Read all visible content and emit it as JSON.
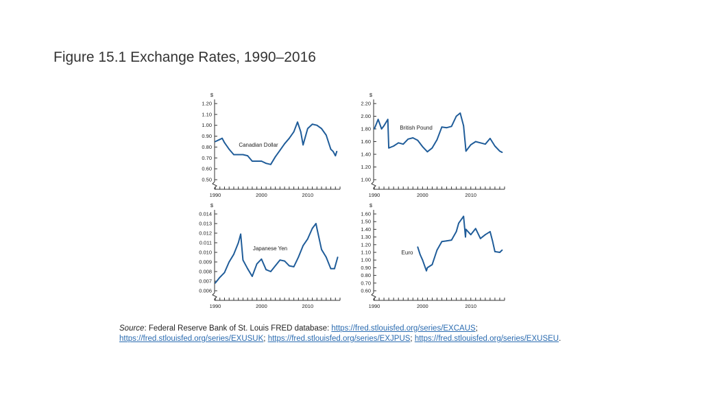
{
  "page": {
    "title": "Figure 15.1 Exchange Rates, 1990–2016"
  },
  "source": {
    "label": "Source",
    "text": ": Federal Reserve Bank of St. Louis FRED database: ",
    "sep": "; ",
    "end": ".",
    "links": [
      "https://fred.stlouisfed.org/series/EXCAUS",
      "https://fred.stlouisfed.org/series/EXUSUK",
      "https://fred.stlouisfed.org/series/EXJPUS",
      "https://fred.stlouisfed.org/series/EXUSEU"
    ]
  },
  "colors": {
    "line": "#1f5c99",
    "axis": "#333333"
  },
  "chart_data": [
    {
      "type": "line",
      "name": "Canadian Dollar",
      "ylabel": "$",
      "yticks": [
        "0.50",
        "0.60",
        "0.70",
        "0.80",
        "0.90",
        "1.00",
        "1.10",
        "1.20"
      ],
      "ylim": [
        0.5,
        1.2
      ],
      "xticks": [
        "1990",
        "2000",
        "2010"
      ],
      "xlim": [
        1990,
        2017
      ],
      "x": [
        1990,
        1991,
        1991.5,
        1992,
        1993,
        1994,
        1995,
        1996,
        1997,
        1998,
        1999,
        2000,
        2001,
        2002,
        2003,
        2004,
        2005,
        2006,
        2007,
        2007.8,
        2008.5,
        2009,
        2010,
        2011,
        2012,
        2013,
        2014,
        2015,
        2015.5,
        2016,
        2016.3
      ],
      "y": [
        0.85,
        0.87,
        0.88,
        0.84,
        0.78,
        0.73,
        0.73,
        0.73,
        0.72,
        0.67,
        0.67,
        0.67,
        0.65,
        0.64,
        0.71,
        0.77,
        0.83,
        0.88,
        0.94,
        1.03,
        0.94,
        0.82,
        0.97,
        1.01,
        1.0,
        0.97,
        0.91,
        0.78,
        0.76,
        0.72,
        0.76
      ],
      "label_position": "center-left"
    },
    {
      "type": "line",
      "name": "British Pound",
      "ylabel": "$",
      "yticks": [
        "1.00",
        "1.20",
        "1.40",
        "1.60",
        "1.80",
        "2.00",
        "2.20"
      ],
      "ylim": [
        1.0,
        2.2
      ],
      "xticks": [
        "1990",
        "2000",
        "2010"
      ],
      "xlim": [
        1990,
        2017
      ],
      "x": [
        1990,
        1990.8,
        1991.5,
        1992,
        1992.8,
        1993,
        1994,
        1995,
        1996,
        1997,
        1998,
        1999,
        2000,
        2001,
        2002,
        2003,
        2004,
        2005,
        2006,
        2007,
        2007.8,
        2008.5,
        2009,
        2010,
        2011,
        2012,
        2013,
        2014,
        2015,
        2016,
        2016.5
      ],
      "y": [
        1.8,
        1.95,
        1.8,
        1.85,
        1.95,
        1.5,
        1.53,
        1.58,
        1.56,
        1.64,
        1.66,
        1.62,
        1.52,
        1.44,
        1.5,
        1.63,
        1.83,
        1.82,
        1.84,
        2.0,
        2.05,
        1.85,
        1.45,
        1.55,
        1.6,
        1.58,
        1.56,
        1.65,
        1.53,
        1.45,
        1.43
      ],
      "label_position": "top-center"
    },
    {
      "type": "line",
      "name": "Japanese Yen",
      "ylabel": "$",
      "yticks": [
        "0.006",
        "0.007",
        "0.008",
        "0.009",
        "0.010",
        "0.011",
        "0.012",
        "0.013",
        "0.014"
      ],
      "ylim": [
        0.006,
        0.014
      ],
      "xticks": [
        "1990",
        "2000",
        "2010"
      ],
      "xlim": [
        1990,
        2017
      ],
      "x": [
        1990,
        1991,
        1992,
        1993,
        1994,
        1995,
        1995.5,
        1996,
        1997,
        1998,
        1999,
        2000,
        2001,
        2002,
        2003,
        2004,
        2005,
        2006,
        2007,
        2008,
        2009,
        2010,
        2011,
        2011.8,
        2012,
        2013,
        2014,
        2015,
        2015.8,
        2016.5
      ],
      "y": [
        0.0068,
        0.0074,
        0.0079,
        0.009,
        0.0098,
        0.011,
        0.0119,
        0.0092,
        0.0083,
        0.0075,
        0.0088,
        0.0093,
        0.0082,
        0.008,
        0.0086,
        0.0092,
        0.0091,
        0.0086,
        0.0085,
        0.0095,
        0.0107,
        0.0114,
        0.0125,
        0.013,
        0.0125,
        0.0103,
        0.0095,
        0.0083,
        0.0083,
        0.0095
      ],
      "label_position": "center"
    },
    {
      "type": "line",
      "name": "Euro",
      "ylabel": "$",
      "yticks": [
        "0.60",
        "0.70",
        "0.80",
        "0.90",
        "1.00",
        "1.10",
        "1.20",
        "1.30",
        "1.40",
        "1.50",
        "1.60"
      ],
      "ylim": [
        0.6,
        1.6
      ],
      "xticks": [
        "1990",
        "2000",
        "2010"
      ],
      "xlim": [
        1990,
        2017
      ],
      "x": [
        1999,
        1999.5,
        2000,
        2000.8,
        2001,
        2002,
        2003,
        2004,
        2005,
        2006,
        2007,
        2007.5,
        2008.5,
        2008.9,
        2009,
        2010,
        2011,
        2012,
        2013,
        2014,
        2014.5,
        2015,
        2016,
        2016.5
      ],
      "y": [
        1.17,
        1.07,
        1.0,
        0.86,
        0.9,
        0.94,
        1.13,
        1.24,
        1.25,
        1.26,
        1.37,
        1.48,
        1.57,
        1.3,
        1.4,
        1.33,
        1.41,
        1.28,
        1.33,
        1.37,
        1.25,
        1.11,
        1.1,
        1.13
      ],
      "label_position": "center-left"
    }
  ]
}
